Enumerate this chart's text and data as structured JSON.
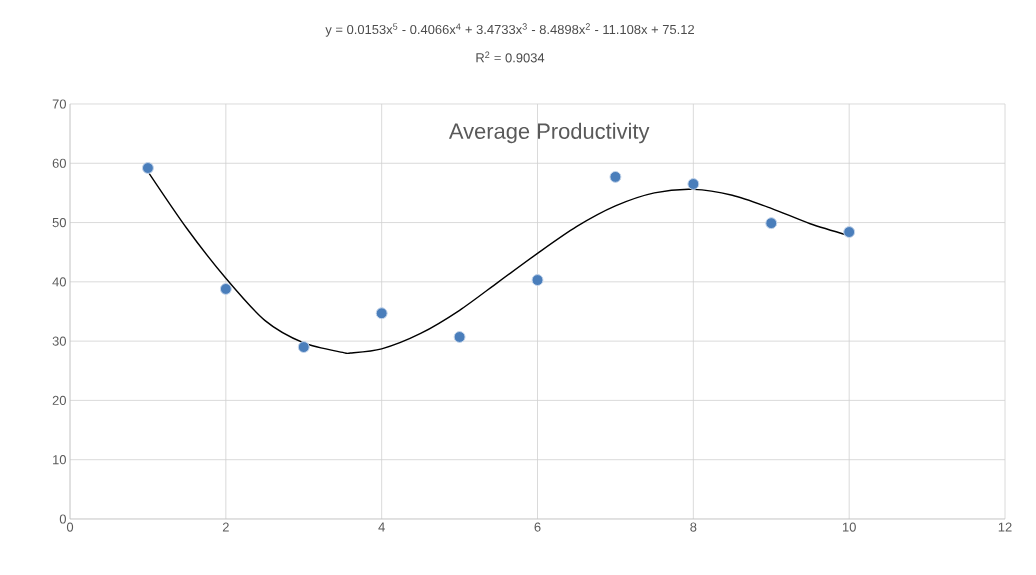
{
  "chart_data": {
    "type": "scatter",
    "title": "Average Productivity",
    "annotations": [
      "y = 0.0153x$^{5}$ - 0.4066x$^{4}$ + 3.4733x$^{3}$ - 8.4898x$^{2}$ - 11.108x + 75.12",
      "R$^{2}$ = 0.9034"
    ],
    "x": [
      1,
      2,
      3,
      4,
      5,
      6,
      7,
      8,
      9,
      10
    ],
    "series": [
      {
        "color": "#4a7ebb",
        "marker": "circle",
        "values": [
          59.2,
          38.8,
          29.0,
          34.7,
          30.7,
          40.3,
          57.7,
          56.5,
          49.9,
          48.4
        ]
      },
      {
        "type": "line",
        "color": "#000000",
        "marker": "none",
        "line_style": "solid",
        "x": [
          1,
          1.5,
          2,
          2.5,
          3,
          3.5,
          3.6,
          4,
          4.5,
          5,
          5.5,
          6,
          6.5,
          7,
          7.5,
          8,
          8.5,
          9,
          9.5,
          10
        ],
        "values": [
          58.6,
          49.0,
          40.6,
          33.5,
          29.7,
          28.1,
          28.0,
          28.7,
          31.3,
          35.2,
          40.0,
          44.8,
          49.3,
          52.8,
          55.0,
          55.6,
          54.6,
          52.4,
          49.8,
          47.8
        ]
      }
    ],
    "xlim": [
      0,
      12
    ],
    "xticks": [
      0,
      2,
      4,
      6,
      8,
      10,
      12
    ],
    "ylim": [
      0,
      70
    ],
    "yticks": [
      0,
      10,
      20,
      30,
      40,
      50,
      60,
      70
    ],
    "grid": true
  }
}
